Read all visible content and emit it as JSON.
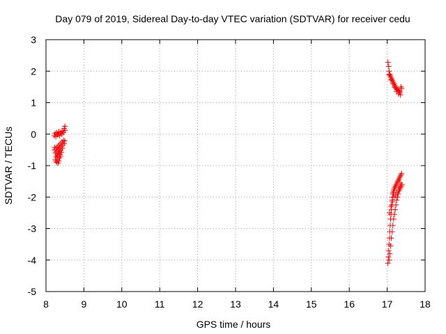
{
  "chart_data": {
    "type": "scatter",
    "title": "Day 079 of 2019, Sidereal Day-to-day VTEC variation (SDTVAR) for receiver cedu",
    "xlabel": "GPS time / hours",
    "ylabel": "SDTVAR / TECUs",
    "xlim": [
      8,
      18
    ],
    "ylim": [
      -5,
      3
    ],
    "xticks": [
      8,
      9,
      10,
      11,
      12,
      13,
      14,
      15,
      16,
      17,
      18
    ],
    "yticks": [
      -5,
      -4,
      -3,
      -2,
      -1,
      0,
      1,
      2,
      3
    ],
    "grid": true,
    "marker": "+",
    "marker_color": "#ff0000",
    "series": [
      {
        "x": [
          8.22,
          8.24,
          8.26,
          8.28,
          8.3,
          8.32,
          8.34,
          8.36,
          8.38,
          8.4,
          8.42,
          8.44,
          8.46,
          8.48,
          8.5,
          8.5,
          8.22,
          8.23,
          8.25,
          8.27,
          8.28,
          8.3,
          8.32,
          8.34,
          8.36,
          8.38,
          8.4,
          8.42,
          8.44,
          8.46,
          8.48,
          8.49,
          8.25,
          8.27,
          8.29,
          8.31,
          8.33,
          8.35,
          8.37,
          8.39,
          8.41,
          8.43,
          8.26,
          8.28,
          8.3,
          8.32,
          8.34,
          8.36,
          8.38
        ],
        "y": [
          -0.05,
          0.02,
          -0.08,
          0.05,
          -0.02,
          0.0,
          0.08,
          -0.05,
          0.02,
          0.06,
          0.0,
          0.1,
          0.05,
          0.18,
          0.12,
          0.25,
          -0.5,
          -0.42,
          -0.6,
          -0.45,
          -0.55,
          -0.4,
          -0.5,
          -0.35,
          -0.45,
          -0.3,
          -0.4,
          -0.25,
          -0.35,
          -0.2,
          -0.3,
          -0.22,
          -0.8,
          -0.72,
          -0.65,
          -0.7,
          -0.6,
          -0.55,
          -0.65,
          -0.5,
          -0.58,
          -0.45,
          -0.85,
          -0.9,
          -0.8,
          -0.92,
          -0.85,
          -0.75,
          -0.7
        ]
      },
      {
        "x": [
          17.02,
          17.04,
          17.05,
          17.07,
          17.08,
          17.1,
          17.12,
          17.14,
          17.16,
          17.18,
          17.2,
          17.22,
          17.24,
          17.26,
          17.28,
          17.3,
          17.32,
          17.34,
          17.36,
          17.38,
          17.05,
          17.1,
          17.15,
          17.2,
          17.25,
          17.3,
          17.35
        ],
        "y": [
          2.28,
          2.15,
          2.0,
          1.9,
          1.85,
          1.8,
          1.75,
          1.7,
          1.65,
          1.6,
          1.55,
          1.5,
          1.45,
          1.42,
          1.4,
          1.38,
          1.35,
          1.32,
          1.5,
          1.45,
          1.88,
          1.72,
          1.6,
          1.48,
          1.35,
          1.28,
          1.25
        ]
      },
      {
        "x": [
          17.02,
          17.03,
          17.04,
          17.05,
          17.06,
          17.07,
          17.08,
          17.09,
          17.1,
          17.11,
          17.12,
          17.13,
          17.14,
          17.15,
          17.16,
          17.17,
          17.18,
          17.2,
          17.22,
          17.24,
          17.26,
          17.28,
          17.3,
          17.32,
          17.34,
          17.36,
          17.38,
          17.05,
          17.07,
          17.09,
          17.11,
          17.13,
          17.15,
          17.17,
          17.19,
          17.21,
          17.23,
          17.25,
          17.27,
          17.29,
          17.31,
          17.33,
          17.35,
          17.37,
          17.39,
          17.06,
          17.1,
          17.14,
          17.18,
          17.22,
          17.26,
          17.3,
          17.34
        ],
        "y": [
          -4.1,
          -3.9,
          -3.7,
          -3.5,
          -3.3,
          -3.1,
          -2.9,
          -2.7,
          -2.55,
          -2.4,
          -2.25,
          -2.1,
          -2.0,
          -1.9,
          -1.85,
          -1.8,
          -1.75,
          -1.7,
          -1.65,
          -1.6,
          -1.55,
          -1.5,
          -1.45,
          -1.4,
          -1.35,
          -1.3,
          -1.25,
          -4.0,
          -3.8,
          -3.55,
          -3.3,
          -3.1,
          -2.9,
          -2.7,
          -2.55,
          -2.4,
          -2.25,
          -2.1,
          -2.0,
          -1.9,
          -1.8,
          -1.75,
          -1.7,
          -1.65,
          -1.6,
          -2.5,
          -2.3,
          -2.15,
          -2.0,
          -1.95,
          -1.85,
          -1.7,
          -1.55
        ]
      }
    ]
  }
}
